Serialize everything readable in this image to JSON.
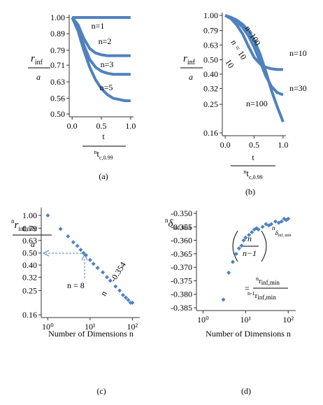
{
  "chart_data": [
    {
      "type": "line",
      "caption": "(a)",
      "x_label": {
        "numerator": "t",
        "denominator_prefix": "n",
        "denominator": "t",
        "denominator_subscript": "c,0.99"
      },
      "y_label": {
        "numerator": "r",
        "numerator_subscript": "inf",
        "denominator": "a"
      },
      "x": [
        0,
        0.1,
        0.2,
        0.3,
        0.4,
        0.5,
        0.6,
        0.7,
        0.8,
        0.9,
        1.0
      ],
      "xlim": [
        -0.05,
        1.05
      ],
      "xticks": [
        {
          "value": 0,
          "label": "0.0"
        },
        0.5,
        {
          "value": 1,
          "label": "1.0"
        }
      ],
      "ylim": [
        0.5,
        1
      ],
      "log_y": true,
      "yticks": [
        {
          "value": 1,
          "label": "1.00"
        },
        0.89,
        0.79,
        0.71,
        0.63,
        0.56,
        {
          "value": 0.5,
          "label": "0.50"
        }
      ],
      "series": [
        {
          "name": "n=1",
          "color": "#4f81bd",
          "values": [
            1,
            1,
            1,
            1,
            1,
            1,
            1,
            1,
            1,
            1,
            1
          ]
        },
        {
          "name": "n=2",
          "color": "#4f81bd",
          "values": [
            1,
            0.95,
            0.86,
            0.8,
            0.775,
            0.765,
            0.76,
            0.76,
            0.76,
            0.76,
            0.76
          ]
        },
        {
          "name": "n=3",
          "color": "#4f81bd",
          "values": [
            1,
            0.93,
            0.82,
            0.74,
            0.7,
            0.68,
            0.67,
            0.665,
            0.665,
            0.665,
            0.665
          ]
        },
        {
          "name": "n=5",
          "color": "#4f81bd",
          "values": [
            1,
            0.91,
            0.79,
            0.7,
            0.64,
            0.6,
            0.575,
            0.56,
            0.555,
            0.55,
            0.55
          ]
        }
      ]
    },
    {
      "type": "line",
      "caption": "(b)",
      "x_label": {
        "numerator": "t",
        "denominator_prefix": "n",
        "denominator": "t",
        "denominator_subscript": "c,0.99"
      },
      "y_label": {
        "numerator": "r",
        "numerator_subscript": "inf",
        "denominator": "a"
      },
      "x": [
        0,
        0.1,
        0.2,
        0.3,
        0.4,
        0.5,
        0.6,
        0.7,
        0.8,
        0.9,
        1.0
      ],
      "xlim": [
        -0.05,
        1.05
      ],
      "xticks": [
        {
          "value": 0,
          "label": "0.0"
        },
        0.5,
        {
          "value": 1,
          "label": "1.0"
        }
      ],
      "ylim": [
        0.16,
        1
      ],
      "log_y": true,
      "yticks": [
        {
          "value": 1,
          "label": "1.00"
        },
        0.79,
        0.63,
        {
          "value": 0.5,
          "label": "0.50"
        },
        {
          "value": 0.4,
          "label": "0.40"
        },
        0.32,
        0.25,
        0.16
      ],
      "series": [
        {
          "name": "n=10",
          "color": "#4f81bd",
          "values": [
            1,
            0.95,
            0.86,
            0.75,
            0.62,
            0.52,
            0.47,
            0.445,
            0.435,
            0.43,
            0.43
          ]
        },
        {
          "name": "n=30",
          "color": "#4f81bd",
          "values": [
            1,
            0.96,
            0.91,
            0.83,
            0.73,
            0.61,
            0.49,
            0.39,
            0.33,
            0.3,
            0.29
          ]
        },
        {
          "name": "n=100",
          "color": "#4f81bd",
          "values": [
            1,
            0.97,
            0.93,
            0.87,
            0.79,
            0.68,
            0.55,
            0.42,
            0.31,
            0.24,
            0.19
          ]
        }
      ],
      "annotations": [
        "n=100",
        "n = 10",
        "10"
      ]
    },
    {
      "type": "scatter",
      "caption": "(c)",
      "x_label": "Number of Dimensions n",
      "y_label": {
        "numerator_prefix": "n",
        "numerator": "r",
        "numerator_subscript": "inf,min",
        "denominator": "a"
      },
      "x": [
        1,
        2,
        3,
        4,
        5,
        6,
        7,
        8,
        10,
        12,
        15,
        20,
        25,
        30,
        40,
        50,
        60,
        70,
        80,
        90,
        100
      ],
      "values": [
        1.0,
        0.78,
        0.68,
        0.61,
        0.57,
        0.53,
        0.5,
        0.48,
        0.44,
        0.41,
        0.38,
        0.35,
        0.32,
        0.3,
        0.27,
        0.25,
        0.23,
        0.22,
        0.21,
        0.2,
        0.2
      ],
      "color": "#4f81bd",
      "xlim": [
        0.7,
        150
      ],
      "log_x": true,
      "xticks": [
        {
          "value": 1,
          "label": "10⁰"
        },
        {
          "value": 10,
          "label": "10¹"
        },
        {
          "value": 100,
          "label": "10²"
        }
      ],
      "ylim": [
        0.16,
        1.1
      ],
      "log_y": true,
      "yticks": [
        {
          "value": 1,
          "label": "1.00"
        },
        0.79,
        0.63,
        {
          "value": 0.5,
          "label": "0.50"
        },
        {
          "value": 0.4,
          "label": "0.40"
        },
        0.32,
        0.25,
        0.16
      ],
      "annotations": [
        "n = 8",
        "n",
        "-0.354"
      ]
    },
    {
      "type": "scatter",
      "caption": "(d)",
      "x_label": "Number of Dimensions n",
      "y_label": {
        "prefix": "n",
        "symbol": "δ",
        "subscript": "inf,min"
      },
      "x": [
        3,
        4,
        5,
        6,
        7,
        8,
        9,
        10,
        12,
        14,
        16,
        18,
        20,
        25,
        30,
        35,
        40,
        50,
        60,
        70,
        80,
        90,
        100
      ],
      "values": [
        -0.382,
        -0.372,
        -0.368,
        -0.365,
        -0.363,
        -0.362,
        -0.36,
        -0.359,
        -0.358,
        -0.357,
        -0.356,
        -0.3555,
        -0.356,
        -0.355,
        -0.354,
        -0.3545,
        -0.354,
        -0.353,
        -0.3535,
        -0.353,
        -0.352,
        -0.3525,
        -0.352
      ],
      "color": "#4f81bd",
      "xlim": [
        0.7,
        150
      ],
      "log_x": true,
      "xticks": [
        {
          "value": 1,
          "label": "10⁰"
        },
        {
          "value": 10,
          "label": "10¹"
        },
        {
          "value": 100,
          "label": "10²"
        }
      ],
      "ylim": [
        -0.385,
        -0.35
      ],
      "yticks": [
        {
          "value": -0.35,
          "label": "-0.350"
        },
        -0.355,
        {
          "value": -0.36,
          "label": "-0.360"
        },
        -0.365,
        {
          "value": -0.37,
          "label": "-0.370"
        },
        -0.375,
        {
          "value": -0.38,
          "label": "-0.380"
        },
        -0.385
      ],
      "annotations": {
        "fraction_numerator": "n",
        "fraction_denominator": "n−1",
        "exponent": "n",
        "exponent_symbol": "δ",
        "exponent_subscript": "inf, min",
        "equals": "=",
        "ratio_numerator_prefix": "n",
        "ratio_numerator": "r",
        "ratio_numerator_subscript": "inf,min",
        "ratio_denominator_prefix": "n-1",
        "ratio_denominator": "r",
        "ratio_denominator_subscript": "inf,min"
      }
    }
  ]
}
